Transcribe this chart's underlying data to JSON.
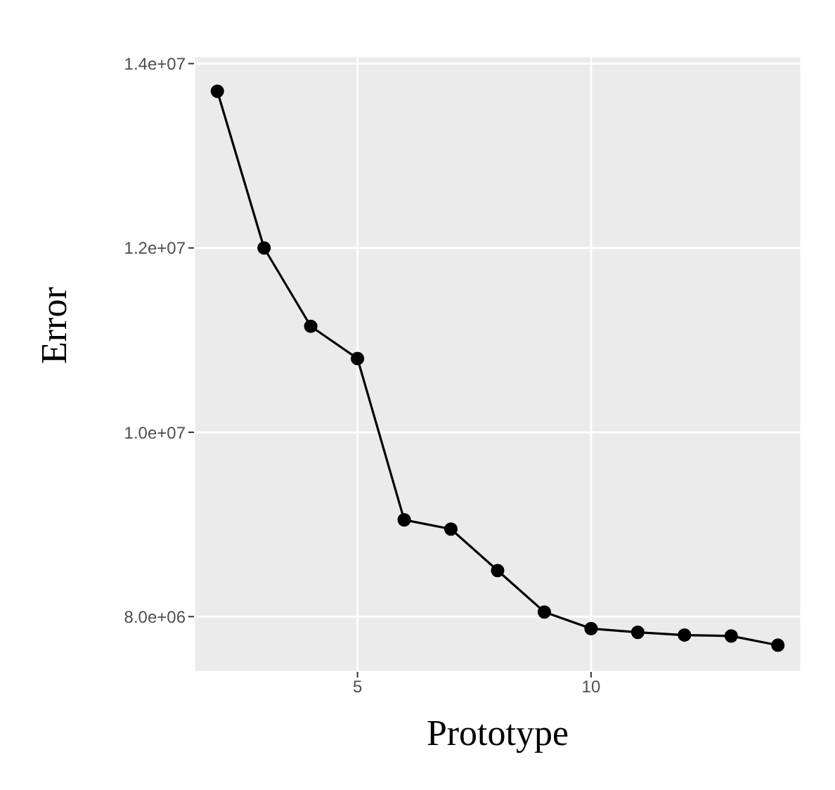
{
  "chart_data": {
    "type": "line",
    "xlabel": "Prototype",
    "ylabel": "Error",
    "x": [
      2,
      3,
      4,
      5,
      6,
      7,
      8,
      9,
      10,
      11,
      12,
      13,
      14
    ],
    "series": [
      {
        "color": "#000000",
        "values": [
          13700000,
          12000000,
          11150000,
          10800000,
          9050000,
          8950000,
          8500000,
          8050000,
          7870000,
          7830000,
          7800000,
          7790000,
          7690000
        ]
      }
    ],
    "xlim": [
      1.5,
      14.5
    ],
    "xticks": [
      5,
      10
    ],
    "ylim": [
      7400000,
      14080000
    ],
    "yticks": [
      {
        "value": 8000000,
        "label": "8.0e+06"
      },
      {
        "value": 10000000,
        "label": "1.0e+07"
      },
      {
        "value": 12000000,
        "label": "1.2e+07"
      },
      {
        "value": 14000000,
        "label": "1.4e+07"
      }
    ],
    "grid": true,
    "marker": "circle",
    "line_style": "solid"
  }
}
